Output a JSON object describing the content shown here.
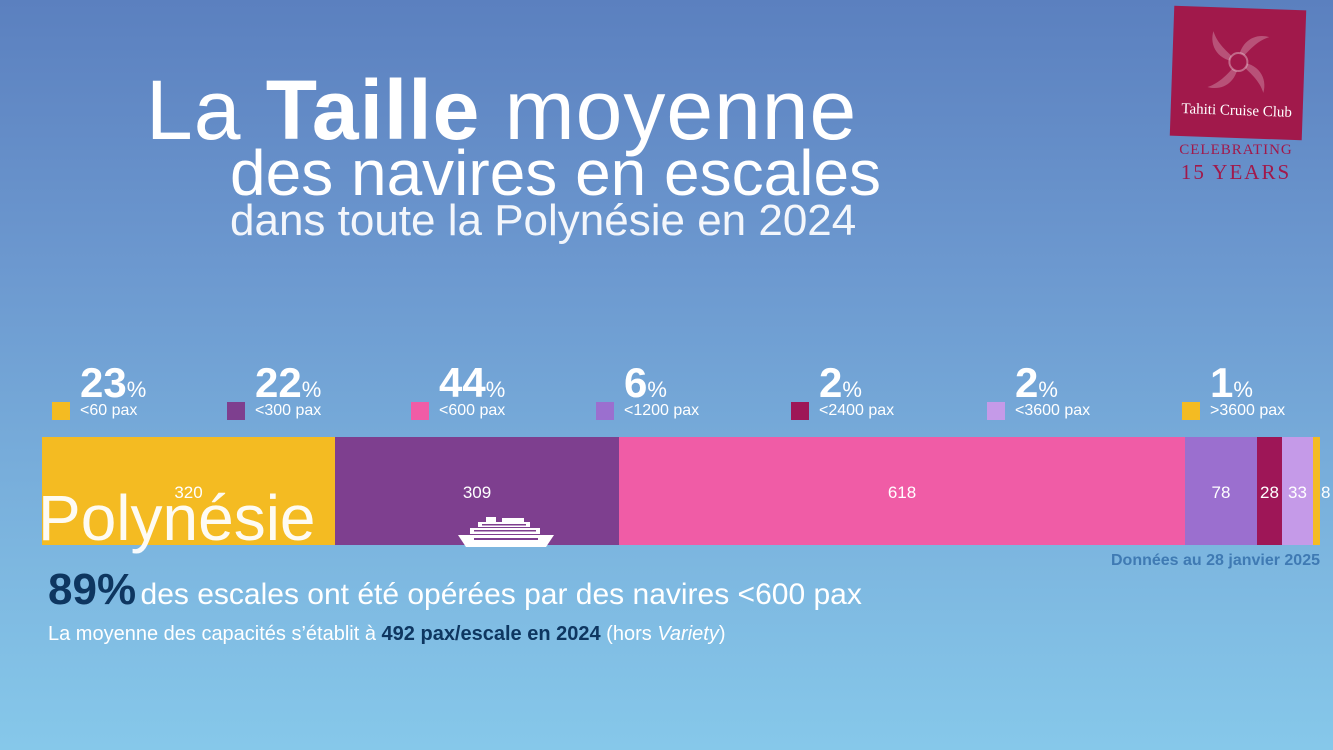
{
  "title": {
    "line1_pre": "La",
    "line1_bold": "Taille",
    "line1_post": "moyenne",
    "line2": "des navires en escales",
    "line3": "dans toute la Polynésie en 2024"
  },
  "logo": {
    "name": "Tahiti Cruise Club",
    "celebrating": "CELEBRATING",
    "years": "15 YEARS",
    "color": "#a1194b"
  },
  "legend": [
    {
      "pct": "23",
      "unit": "%",
      "label": "<60 pax",
      "color": "#f4bb22"
    },
    {
      "pct": "22",
      "unit": "%",
      "label": "<300 pax",
      "color": "#7e3f8f"
    },
    {
      "pct": "44",
      "unit": "%",
      "label": "<600 pax",
      "color": "#f05ca6"
    },
    {
      "pct": "6",
      "unit": "%",
      "label": "<1200 pax",
      "color": "#9b6fcf"
    },
    {
      "pct": "2",
      "unit": "%",
      "label": "<2400 pax",
      "color": "#9e1657"
    },
    {
      "pct": "2",
      "unit": "%",
      "label": "<3600 pax",
      "color": "#c59ae8"
    },
    {
      "pct": "1",
      "unit": "%",
      "label": ">3600 pax",
      "color": "#f4bb22"
    }
  ],
  "chart_data": {
    "type": "bar",
    "orientation": "horizontal-stacked",
    "title": "La Taille moyenne des navires en escales dans toute la Polynésie en 2024",
    "categories": [
      "Polynésie"
    ],
    "series": [
      {
        "name": "<60 pax",
        "values": [
          320
        ],
        "color": "#f4bb22"
      },
      {
        "name": "<300 pax",
        "values": [
          309
        ],
        "color": "#7e3f8f"
      },
      {
        "name": "<600 pax",
        "values": [
          618
        ],
        "color": "#f05ca6"
      },
      {
        "name": "<1200 pax",
        "values": [
          78
        ],
        "color": "#9b6fcf"
      },
      {
        "name": "<2400 pax",
        "values": [
          28
        ],
        "color": "#9e1657"
      },
      {
        "name": "<3600 pax",
        "values": [
          33
        ],
        "color": "#c59ae8"
      },
      {
        "name": ">3600 pax",
        "values": [
          8
        ],
        "color": "#f4bb22"
      }
    ],
    "row_label": "Polynésie"
  },
  "source": "Données au 28 janvier 2025",
  "summary": {
    "big": "89%",
    "rest": "des escales ont été opérées par des navires <600 pax",
    "sub_pre": "La moyenne des capacités s’établit à",
    "sub_bold": "492 pax/escale en 2024",
    "sub_paren_open": "(hors",
    "sub_italic": "Variety",
    "sub_paren_close": ")"
  }
}
